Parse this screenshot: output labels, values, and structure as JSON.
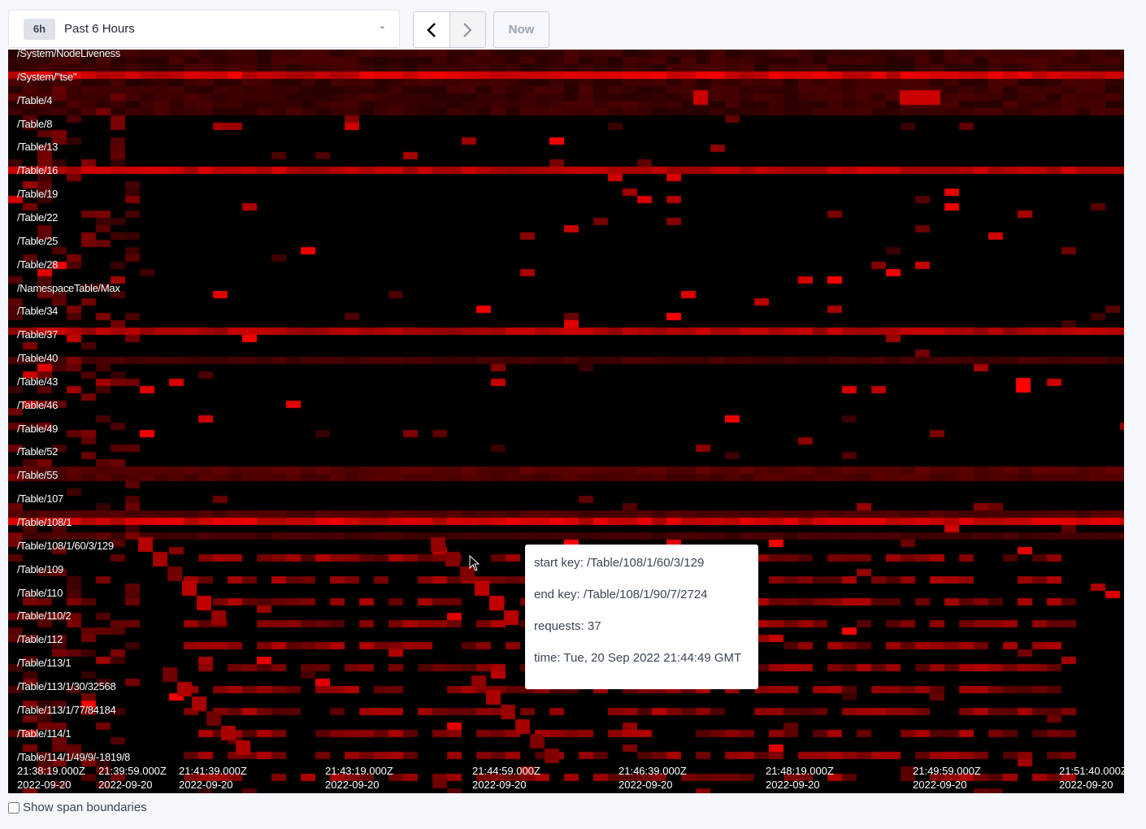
{
  "time_range": {
    "badge": "6h",
    "label": "Past 6 Hours"
  },
  "nav": {
    "prev_icon": "chevron-left-icon",
    "next_icon": "chevron-right-icon",
    "now_label": "Now"
  },
  "rows": [
    "/System/NodeLiveness",
    "/System/\"tse\"",
    "/Table/4",
    "/Table/8",
    "/Table/13",
    "/Table/16",
    "/Table/19",
    "/Table/22",
    "/Table/25",
    "/Table/28",
    "/NamespaceTable/Max",
    "/Table/34",
    "/Table/37",
    "/Table/40",
    "/Table/43",
    "/Table/46",
    "/Table/49",
    "/Table/52",
    "/Table/55",
    "/Table/107",
    "/Table/108/1",
    "/Table/108/1/60/3/129",
    "/Table/109",
    "/Table/110",
    "/Table/110/2",
    "/Table/112",
    "/Table/113/1",
    "/Table/113/1/30/32568",
    "/Table/113/1/77/84184",
    "/Table/114/1",
    "/Table/114/1/49/9/-1819/8"
  ],
  "time_ticks": [
    {
      "time": "21:38:19.000Z",
      "date": "2022-09-20"
    },
    {
      "time": "21:39:59.000Z",
      "date": "2022-09-20"
    },
    {
      "time": "21:41:39.000Z",
      "date": "2022-09-20"
    },
    {
      "time": "21:43:19.000Z",
      "date": "2022-09-20"
    },
    {
      "time": "21:44:59.000Z",
      "date": "2022-09-20"
    },
    {
      "time": "21:46:39.000Z",
      "date": "2022-09-20"
    },
    {
      "time": "21:48:19.000Z",
      "date": "2022-09-20"
    },
    {
      "time": "21:49:59.000Z",
      "date": "2022-09-20"
    },
    {
      "time": "21:51:40.000Z",
      "date": "2022-09-20"
    }
  ],
  "tooltip": {
    "start_key": "start key: /Table/108/1/60/3/129",
    "end_key": "end key: /Table/108/1/90/7/2724",
    "requests": "requests: 37",
    "time": "time: Tue, 20 Sep 2022 21:44:49 GMT"
  },
  "span_boundaries": {
    "label": "Show span boundaries",
    "checked": false
  },
  "colors": {
    "heat": "#ff0000",
    "background": "#000000"
  }
}
